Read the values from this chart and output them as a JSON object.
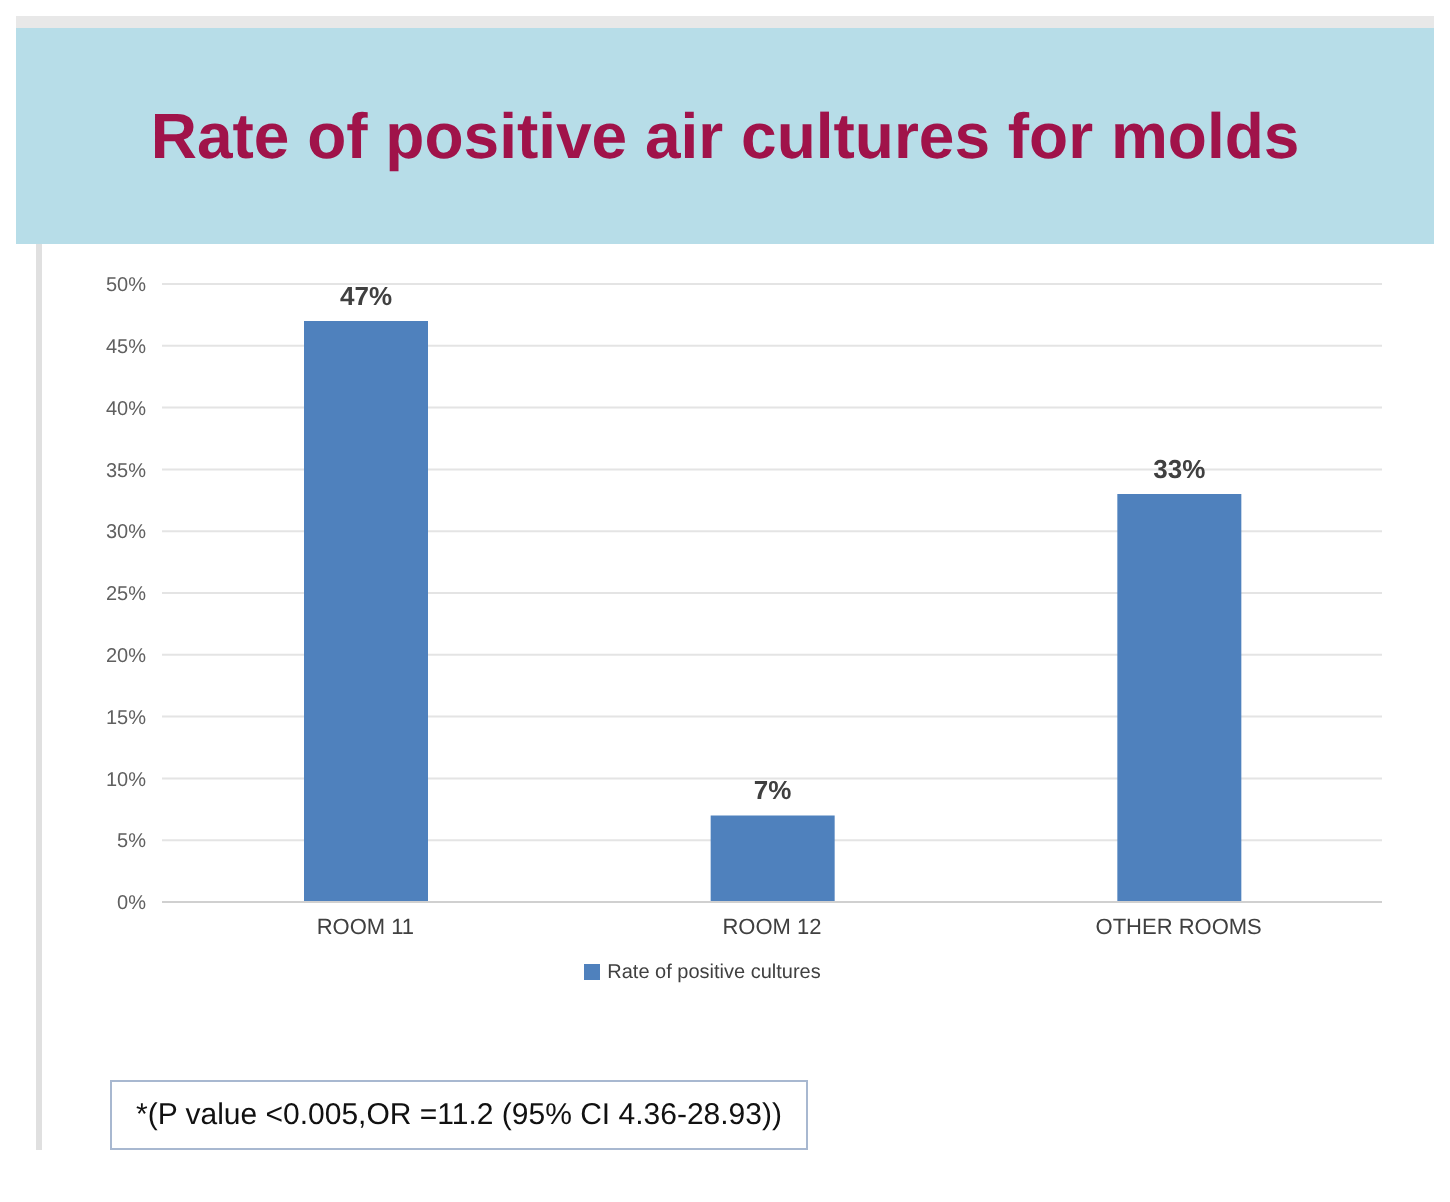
{
  "chart_data": {
    "type": "bar",
    "title": "Rate of positive air cultures for molds",
    "categories": [
      "ROOM 11",
      "ROOM 12",
      "OTHER ROOMS"
    ],
    "series": [
      {
        "name": "Rate of positive cultures",
        "color": "#4f81bd",
        "values": [
          47,
          7,
          33
        ],
        "value_labels": [
          "47%",
          "7%",
          "33%"
        ]
      }
    ],
    "ylim": [
      0,
      50
    ],
    "yticks": [
      {
        "value": 0,
        "label": "0%"
      },
      {
        "value": 5,
        "label": "5%"
      },
      {
        "value": 10,
        "label": "10%"
      },
      {
        "value": 15,
        "label": "15%"
      },
      {
        "value": 20,
        "label": "20%"
      },
      {
        "value": 25,
        "label": "25%"
      },
      {
        "value": 30,
        "label": "30%"
      },
      {
        "value": 35,
        "label": "35%"
      },
      {
        "value": 40,
        "label": "40%"
      },
      {
        "value": 45,
        "label": "45%"
      },
      {
        "value": 50,
        "label": "50%"
      }
    ],
    "grid": "y",
    "legend": "bottom",
    "annotations": [
      "*(P value <0.005,OR =11.2 (95% CI 4.36-28.93))"
    ]
  }
}
